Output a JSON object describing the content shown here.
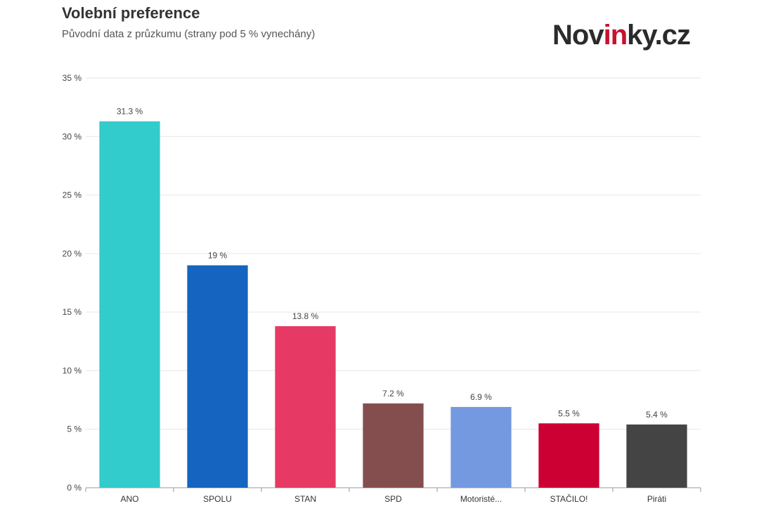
{
  "header": {
    "title": "Volební preference",
    "subtitle": "Původní data z průzkumu (strany pod 5 % vynechány)"
  },
  "logo": {
    "prefix": "Nov",
    "accent": "in",
    "suffix": "ky.cz"
  },
  "chart_data": {
    "type": "bar",
    "categories": [
      "ANO",
      "SPOLU",
      "STAN",
      "SPD",
      "Motoristé...",
      "STAČILO!",
      "Piráti"
    ],
    "values": [
      31.3,
      19,
      13.8,
      7.2,
      6.9,
      5.5,
      5.4
    ],
    "data_labels": [
      "31.3 %",
      "19 %",
      "13.8 %",
      "7.2 %",
      "6.9 %",
      "5.5 %",
      "5.4 %"
    ],
    "colors": [
      "#33cccc",
      "#1565c0",
      "#e63964",
      "#844e4e",
      "#7499e0",
      "#cc0033",
      "#444444"
    ],
    "ylim": [
      0,
      35
    ],
    "yticks": [
      0,
      5,
      10,
      15,
      20,
      25,
      30,
      35
    ],
    "ytick_labels": [
      "0 %",
      "5 %",
      "10 %",
      "15 %",
      "20 %",
      "25 %",
      "30 %",
      "35 %"
    ],
    "grid": true,
    "legend": "none"
  }
}
